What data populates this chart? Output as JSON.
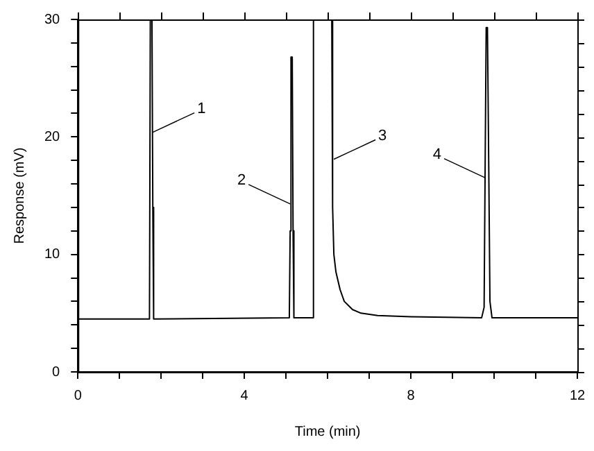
{
  "chart_data": {
    "type": "line",
    "xlabel": "Time (min)",
    "ylabel": "Response (mV)",
    "series": [
      {
        "color": "#000000",
        "x": [
          0,
          1.72,
          1.74,
          1.78,
          1.8,
          1.82,
          5.08,
          5.1,
          5.12,
          5.15,
          5.17,
          5.19,
          5.66,
          5.66,
          6.1,
          6.12,
          6.15,
          6.2,
          6.3,
          6.4,
          6.6,
          6.8,
          7.2,
          8,
          9.7,
          9.76,
          9.79,
          9.81,
          9.84,
          9.87,
          9.9,
          9.95,
          12
        ],
        "values": [
          4.5,
          4.5,
          30,
          30,
          14,
          4.5,
          4.6,
          12,
          26.8,
          26.8,
          12,
          4.6,
          4.6,
          30,
          30,
          14,
          10,
          8.5,
          7,
          6,
          5.3,
          5,
          4.8,
          4.7,
          4.6,
          5.5,
          20,
          29.3,
          29.3,
          18,
          6,
          4.6,
          4.6
        ]
      }
    ],
    "xlim": [
      0,
      12
    ],
    "ylim": [
      0,
      30
    ],
    "xticks": [
      0,
      {
        "value": 1,
        "label": null
      },
      {
        "value": 2,
        "label": null
      },
      {
        "value": 3,
        "label": null
      },
      4,
      {
        "value": 5,
        "label": null
      },
      {
        "value": 6,
        "label": null
      },
      {
        "value": 7,
        "label": null
      },
      8,
      {
        "value": 9,
        "label": null
      },
      {
        "value": 10,
        "label": null
      },
      {
        "value": 11,
        "label": null
      },
      12
    ],
    "yticks": [
      0,
      {
        "value": 2,
        "label": null
      },
      {
        "value": 4,
        "label": null
      },
      {
        "value": 6,
        "label": null
      },
      {
        "value": 8,
        "label": null
      },
      10,
      {
        "value": 12,
        "label": null
      },
      {
        "value": 14,
        "label": null
      },
      {
        "value": 16,
        "label": null
      },
      {
        "value": 18,
        "label": null
      },
      20,
      {
        "value": 22,
        "label": null
      },
      {
        "value": 24,
        "label": null
      },
      {
        "value": 26,
        "label": null
      },
      {
        "value": 28,
        "label": null
      },
      30
    ],
    "annotations": [
      {
        "text": "1",
        "x": 1.8,
        "y": 20.4
      },
      {
        "text": "2",
        "x": 5.1,
        "y": 14.3
      },
      {
        "text": "3",
        "x": 6.15,
        "y": 18.1
      },
      {
        "text": "4",
        "x": 9.8,
        "y": 16.5
      }
    ],
    "grid": false,
    "legend": false,
    "marker": "none",
    "line_style": "solid"
  }
}
